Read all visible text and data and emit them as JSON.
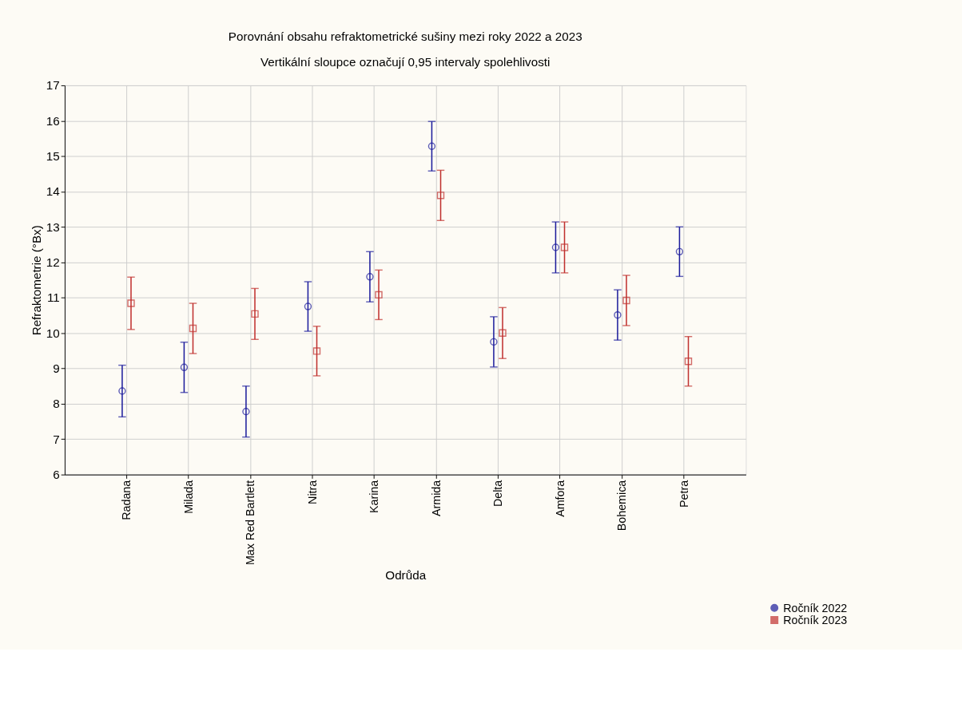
{
  "chart_data": {
    "type": "scatter",
    "title": "Porovnání obsahu refraktometrické sušiny mezi roky 2022 a 2023",
    "subtitle": "Vertikální sloupce označují 0,95 intervaly spolehlivosti",
    "xlabel": "Odrůda",
    "ylabel": "Refraktometrie (°Bx)",
    "categories": [
      "Radana",
      "Milada",
      "Max Red Bartlett",
      "Nitra",
      "Karina",
      "Armida",
      "Delta",
      "Amfora",
      "Bohemica",
      "Petra"
    ],
    "series": [
      {
        "name": "Ročník 2022",
        "color": "#1c1c9c",
        "marker": "circle",
        "values": [
          8.36,
          9.03,
          7.78,
          10.75,
          11.59,
          15.28,
          9.75,
          12.42,
          10.51,
          12.3
        ],
        "errors": [
          0.73,
          0.71,
          0.72,
          0.7,
          0.71,
          0.7,
          0.71,
          0.72,
          0.71,
          0.7
        ]
      },
      {
        "name": "Ročník 2023",
        "color": "#c0302e",
        "marker": "square",
        "values": [
          10.84,
          10.13,
          10.54,
          9.49,
          11.08,
          13.89,
          10.0,
          12.42,
          10.92,
          9.2
        ],
        "errors": [
          0.74,
          0.71,
          0.72,
          0.7,
          0.7,
          0.71,
          0.72,
          0.72,
          0.71,
          0.7
        ]
      }
    ],
    "ylim": [
      6,
      17
    ],
    "yticks": [
      6,
      7,
      8,
      9,
      10,
      11,
      12,
      13,
      14,
      15,
      16,
      17
    ],
    "grid": true,
    "legend": "bottom right"
  }
}
